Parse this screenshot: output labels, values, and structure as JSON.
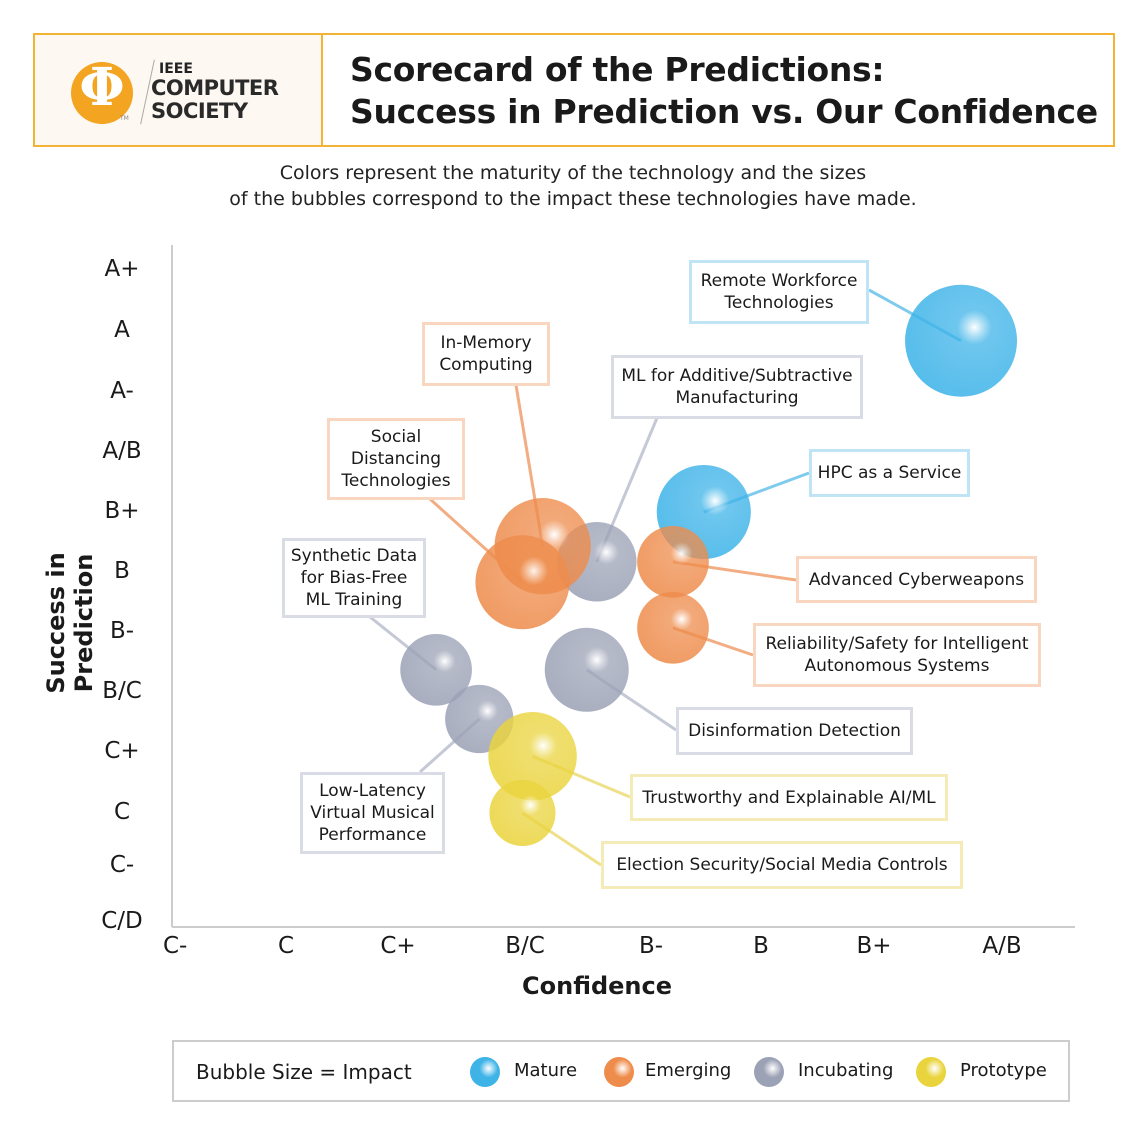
{
  "header": {
    "logo": {
      "ieee": "IEEE",
      "name": "COMPUTER\nSOCIETY",
      "tm": "TM"
    },
    "title": "Scorecard of the Predictions:\nSuccess in Prediction vs. Our Confidence"
  },
  "subtitle": "Colors represent the maturity of the technology and the sizes\nof the bubbles correspond to the impact these technologies have made.",
  "chart_data": {
    "type": "bubble",
    "xlabel": "Confidence",
    "ylabel": "Success in Prediction",
    "x_ticks": [
      "C-",
      "C",
      "C+",
      "B/C",
      "B-",
      "B",
      "B+",
      "A/B"
    ],
    "y_ticks": [
      "C/D",
      "C-",
      "C",
      "C+",
      "B/C",
      "B-",
      "B",
      "B+",
      "A/B",
      "A-",
      "A",
      "A+"
    ],
    "note": "x and y are positions on the grade scales, as fractional tick index (0 = first tick)",
    "grid": false,
    "colors": {
      "Mature": "#3db3e8",
      "Emerging": "#ee8c4c",
      "Incubating": "#9ca2b6",
      "Prototype": "#ead43e"
    },
    "series": [
      {
        "label": "Remote Workforce\nTechnologies",
        "maturity": "Mature",
        "x": 6.68,
        "y": 9.84,
        "impact": 1.0
      },
      {
        "label": "HPC as a Service",
        "maturity": "Mature",
        "x": 4.48,
        "y": 7.0,
        "impact": 0.84
      },
      {
        "label": "ML for Additive/Subtractive\nManufacturing",
        "maturity": "Incubating",
        "x": 3.57,
        "y": 6.17,
        "impact": 0.71
      },
      {
        "label": "Disinformation Detection",
        "maturity": "Incubating",
        "x": 3.49,
        "y": 4.37,
        "impact": 0.75
      },
      {
        "label": "Synthetic Data\nfor Bias-Free\nML Training",
        "maturity": "Incubating",
        "x": 2.3,
        "y": 4.37,
        "impact": 0.64
      },
      {
        "label": "Low-Latency\nVirtual Musical\nPerformance",
        "maturity": "Incubating",
        "x": 2.64,
        "y": 3.55,
        "impact": 0.61
      },
      {
        "label": "In-Memory\nComputing",
        "maturity": "Emerging",
        "x": 3.14,
        "y": 6.43,
        "impact": 0.86
      },
      {
        "label": "Social\nDistancing\nTechnologies",
        "maturity": "Emerging",
        "x": 2.98,
        "y": 5.83,
        "impact": 0.84
      },
      {
        "label": "Advanced Cyberweapons",
        "maturity": "Emerging",
        "x": 4.2,
        "y": 6.17,
        "impact": 0.64
      },
      {
        "label": "Reliability/Safety for Intelligent\nAutonomous Systems",
        "maturity": "Emerging",
        "x": 4.2,
        "y": 5.07,
        "impact": 0.64
      },
      {
        "label": "Trustworthy and Explainable AI/ML",
        "maturity": "Prototype",
        "x": 3.06,
        "y": 2.93,
        "impact": 0.79
      },
      {
        "label": "Election Security/Social Media Controls",
        "maturity": "Prototype",
        "x": 2.98,
        "y": 2.0,
        "impact": 0.59
      }
    ],
    "legend": {
      "title": "Bubble Size = Impact",
      "items": [
        "Mature",
        "Emerging",
        "Incubating",
        "Prototype"
      ],
      "placement": "bottom"
    }
  }
}
